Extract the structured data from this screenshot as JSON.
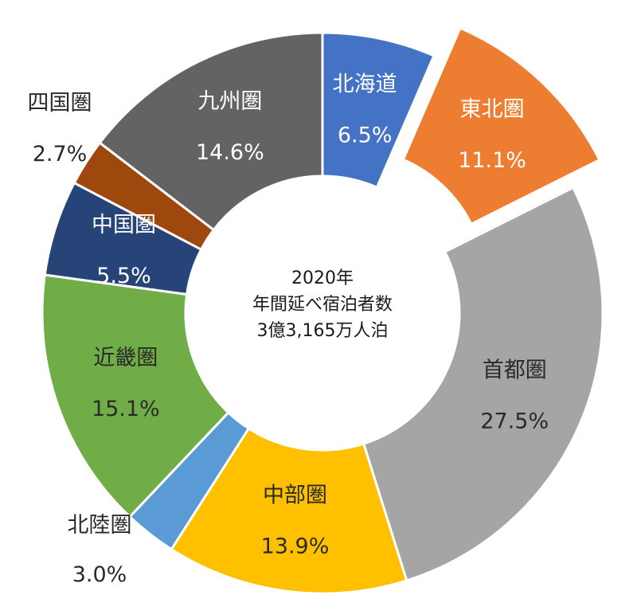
{
  "chart_data": {
    "type": "pie",
    "center_text": [
      "2020年",
      "年間延べ宿泊者数",
      "3億3,165万人泊"
    ],
    "slices": [
      {
        "label": "北海道",
        "value": 6.5,
        "value_text": "6.5%",
        "color": "#4472C4",
        "text_color": "#ffffff",
        "exploded": false,
        "label_outside": false
      },
      {
        "label": "東北圏",
        "value": 11.1,
        "value_text": "11.1%",
        "color": "#ED7D31",
        "text_color": "#ffffff",
        "exploded": true,
        "label_outside": false
      },
      {
        "label": "首都圏",
        "value": 27.5,
        "value_text": "27.5%",
        "color": "#A5A5A5",
        "text_color": "#2a2a2a",
        "exploded": false,
        "label_outside": false
      },
      {
        "label": "中部圏",
        "value": 13.9,
        "value_text": "13.9%",
        "color": "#FFC000",
        "text_color": "#2a2a2a",
        "exploded": false,
        "label_outside": false
      },
      {
        "label": "北陸圏",
        "value": 3.0,
        "value_text": "3.0%",
        "color": "#5B9BD5",
        "text_color": "#2a2a2a",
        "exploded": false,
        "label_outside": true
      },
      {
        "label": "近畿圏",
        "value": 15.1,
        "value_text": "15.1%",
        "color": "#70AD47",
        "text_color": "#2a2a2a",
        "exploded": false,
        "label_outside": false
      },
      {
        "label": "中国圏",
        "value": 5.5,
        "value_text": "5.5%",
        "color": "#264478",
        "text_color": "#ffffff",
        "exploded": false,
        "label_outside": false
      },
      {
        "label": "四国圏",
        "value": 2.7,
        "value_text": "2.7%",
        "color": "#9E480E",
        "text_color": "#2a2a2a",
        "exploded": false,
        "label_outside": true
      },
      {
        "label": "九州圏",
        "value": 14.6,
        "value_text": "14.6%",
        "color": "#636363",
        "text_color": "#ffffff",
        "exploded": false,
        "label_outside": false
      }
    ]
  }
}
